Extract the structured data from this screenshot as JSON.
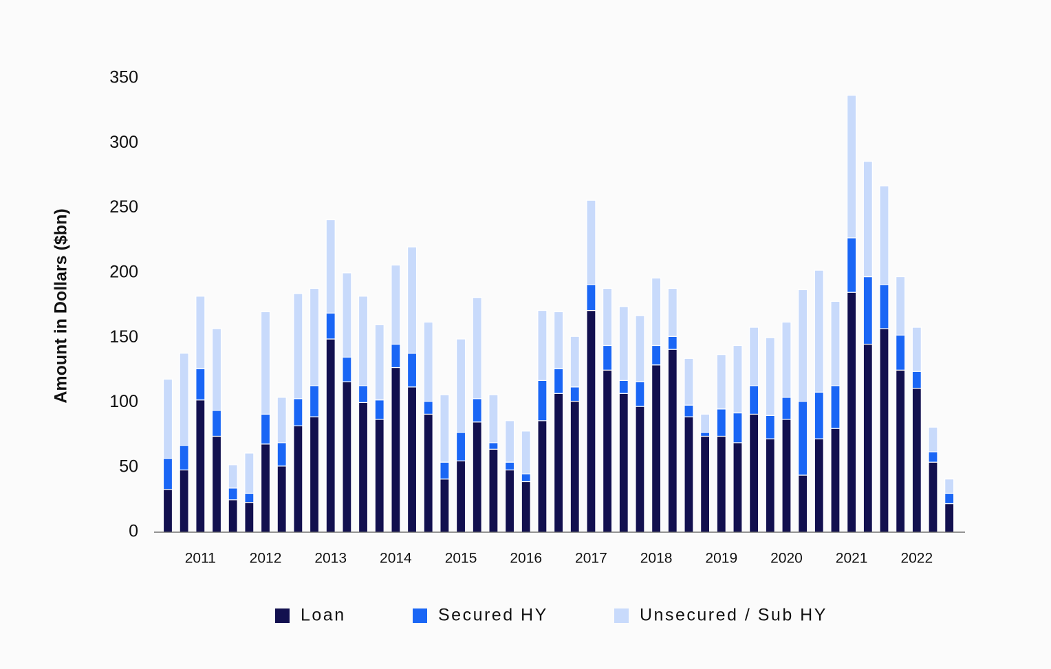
{
  "chart_data": {
    "type": "stacked-bar",
    "y_label": "Amount in Dollars ($bn)",
    "categories": [
      null,
      null,
      "2011",
      null,
      null,
      null,
      "2012",
      null,
      null,
      null,
      "2013",
      null,
      null,
      null,
      "2014",
      null,
      null,
      null,
      "2015",
      null,
      null,
      null,
      "2016",
      null,
      null,
      null,
      "2017",
      null,
      null,
      null,
      "2018",
      null,
      null,
      null,
      "2019",
      null,
      null,
      null,
      "2020",
      null,
      null,
      null,
      "2021",
      null,
      null,
      null,
      "2022",
      null,
      null
    ],
    "series": [
      {
        "name": "Loan",
        "color": "#12104f",
        "values": [
          33,
          48,
          102,
          74,
          25,
          23,
          68,
          51,
          82,
          89,
          149,
          116,
          100,
          87,
          127,
          112,
          91,
          41,
          55,
          85,
          64,
          48,
          39,
          86,
          107,
          101,
          171,
          125,
          107,
          97,
          129,
          141,
          89,
          74,
          74,
          69,
          91,
          72,
          87,
          44,
          72,
          80,
          185,
          145,
          157,
          125,
          111,
          54,
          22
        ]
      },
      {
        "name": "Secured HY",
        "color": "#1a66f5",
        "values": [
          24,
          19,
          24,
          20,
          9,
          7,
          23,
          18,
          21,
          24,
          20,
          19,
          13,
          15,
          18,
          26,
          10,
          13,
          22,
          18,
          5,
          6,
          6,
          31,
          19,
          11,
          20,
          19,
          10,
          19,
          15,
          10,
          9,
          3,
          21,
          23,
          22,
          18,
          17,
          57,
          36,
          33,
          42,
          52,
          34,
          27,
          13,
          8,
          8
        ]
      },
      {
        "name": "Unsecured / Sub HY",
        "color": "#c8dafb",
        "values": [
          61,
          71,
          56,
          63,
          18,
          31,
          79,
          35,
          81,
          75,
          72,
          65,
          69,
          58,
          61,
          82,
          61,
          52,
          72,
          78,
          37,
          32,
          33,
          54,
          44,
          39,
          65,
          44,
          57,
          51,
          52,
          37,
          36,
          14,
          42,
          52,
          45,
          60,
          58,
          86,
          94,
          65,
          110,
          89,
          76,
          45,
          34,
          19,
          11
        ]
      }
    ],
    "ylim": [
      0,
      350
    ],
    "yticks": [
      0,
      50,
      100,
      150,
      200,
      250,
      300,
      350
    ],
    "grid": false,
    "legend": "bottom"
  }
}
